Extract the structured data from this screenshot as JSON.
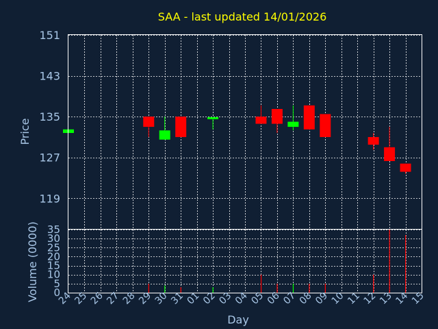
{
  "chart_data": [
    {
      "type": "candlestick",
      "title": "SAA - last updated 14/01/2026",
      "ylabel": "Price",
      "ylim": [
        113,
        151
      ],
      "yticks": [
        "151",
        "143",
        "135",
        "127",
        "119"
      ],
      "xticks": [
        "24",
        "25",
        "26",
        "27",
        "28",
        "29",
        "30",
        "31",
        "01",
        "02",
        "03",
        "04",
        "05",
        "06",
        "07",
        "08",
        "09",
        "10",
        "11",
        "12",
        "13",
        "14",
        "15"
      ],
      "grid": true,
      "colors": {
        "up": "#00ff00",
        "down": "#ff0000",
        "grid": "#ffffff",
        "axis_text": "#a8c6e6",
        "title": "#ffff00",
        "background": "#101f33"
      },
      "candles": [
        {
          "day": "24",
          "open": 131.8,
          "close": 132.5,
          "high": 132.5,
          "low": 131.8
        },
        {
          "day": "29",
          "open": 135.0,
          "close": 133.0,
          "high": 135.0,
          "low": 131.0
        },
        {
          "day": "30",
          "open": 130.5,
          "close": 132.3,
          "high": 135.0,
          "low": 130.5
        },
        {
          "day": "31",
          "open": 135.0,
          "close": 131.0,
          "high": 135.0,
          "low": 131.0
        },
        {
          "day": "02",
          "open": 134.5,
          "close": 134.9,
          "high": 134.9,
          "low": 132.5
        },
        {
          "day": "05",
          "open": 135.0,
          "close": 133.6,
          "high": 137.2,
          "low": 133.6
        },
        {
          "day": "06",
          "open": 136.5,
          "close": 133.6,
          "high": 136.5,
          "low": 131.8
        },
        {
          "day": "07",
          "open": 133.0,
          "close": 134.0,
          "high": 137.2,
          "low": 132.3
        },
        {
          "day": "08",
          "open": 137.2,
          "close": 132.5,
          "high": 137.2,
          "low": 132.5
        },
        {
          "day": "09",
          "open": 135.5,
          "close": 131.0,
          "high": 135.5,
          "low": 131.0
        },
        {
          "day": "12",
          "open": 131.0,
          "close": 129.5,
          "high": 131.8,
          "low": 128.5
        },
        {
          "day": "13",
          "open": 129.0,
          "close": 126.3,
          "high": 133.0,
          "low": 126.3
        },
        {
          "day": "14",
          "open": 125.8,
          "close": 124.2,
          "high": 125.8,
          "low": 123.8
        }
      ]
    },
    {
      "type": "bar",
      "ylabel": "Volume (0000)",
      "xlabel": "Day",
      "ylim": [
        0,
        35
      ],
      "yticks": [
        "35",
        "30",
        "25",
        "20",
        "15",
        "10",
        "5",
        "0"
      ],
      "bars": [
        {
          "day": "29",
          "value": 5,
          "color": "#ff0000"
        },
        {
          "day": "30",
          "value": 4,
          "color": "#00ff00"
        },
        {
          "day": "31",
          "value": 3,
          "color": "#ff0000"
        },
        {
          "day": "02",
          "value": 3,
          "color": "#00ff00"
        },
        {
          "day": "05",
          "value": 10,
          "color": "#ff0000"
        },
        {
          "day": "06",
          "value": 5,
          "color": "#ff0000"
        },
        {
          "day": "07",
          "value": 5,
          "color": "#00ff00"
        },
        {
          "day": "08",
          "value": 5,
          "color": "#ff0000"
        },
        {
          "day": "09",
          "value": 5,
          "color": "#ff0000"
        },
        {
          "day": "12",
          "value": 10,
          "color": "#ff0000"
        },
        {
          "day": "13",
          "value": 35,
          "color": "#ff0000"
        },
        {
          "day": "14",
          "value": 32,
          "color": "#ff0000"
        }
      ]
    }
  ]
}
